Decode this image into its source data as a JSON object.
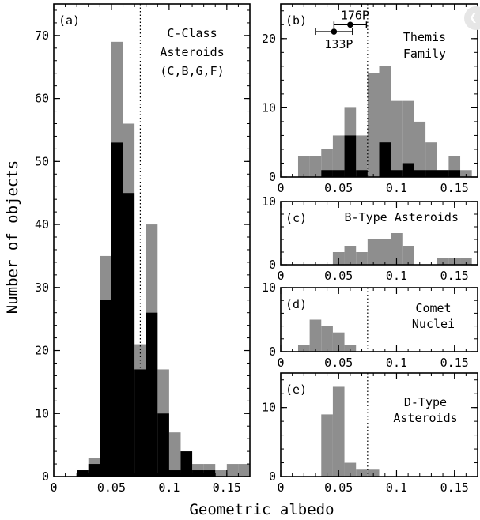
{
  "colors": {
    "gray": "#8e8e8e",
    "black": "#000000",
    "background": "#ffffff"
  },
  "corner_button_icon": "chevron-left-icon",
  "axis_titles": {
    "x": "Geometric albedo",
    "y": "Number of objects"
  },
  "chart_data": [
    {
      "panel": "(a)",
      "type": "bar",
      "label": "C-Class Asteroids (C,B,G,F)",
      "label_lines": [
        "C-Class",
        "Asteroids",
        "(C,B,G,F)"
      ],
      "bin_width": 0.01,
      "bin_starts": [
        0.02,
        0.03,
        0.04,
        0.05,
        0.06,
        0.07,
        0.08,
        0.09,
        0.1,
        0.11,
        0.12,
        0.13,
        0.14,
        0.15,
        0.16
      ],
      "series": [
        {
          "color": "gray",
          "values": [
            1,
            3,
            35,
            69,
            56,
            21,
            40,
            17,
            7,
            4,
            2,
            2,
            1,
            2,
            2
          ]
        },
        {
          "color": "black",
          "values": [
            1,
            2,
            28,
            53,
            45,
            17,
            26,
            10,
            1,
            4,
            1,
            1,
            0,
            0,
            0
          ]
        }
      ],
      "xlim": [
        0,
        0.17
      ],
      "ylim": [
        0,
        75
      ],
      "xticks": [
        0,
        0.05,
        0.1,
        0.15
      ],
      "xtick_labels": [
        "0",
        "0.05",
        "0.1",
        "0.15"
      ],
      "yticks": [
        0,
        10,
        20,
        30,
        40,
        50,
        60,
        70
      ],
      "ytick_labels": [
        "0",
        "10",
        "20",
        "30",
        "40",
        "50",
        "60",
        "70"
      ],
      "dotted_line_x": 0.075
    },
    {
      "panel": "(b)",
      "type": "bar",
      "label": "Themis Family",
      "label_lines": [
        "Themis",
        "Family"
      ],
      "bin_width": 0.01,
      "bin_starts": [
        0.015,
        0.025,
        0.035,
        0.045,
        0.055,
        0.065,
        0.075,
        0.085,
        0.095,
        0.105,
        0.115,
        0.125,
        0.135,
        0.145,
        0.155
      ],
      "series": [
        {
          "color": "gray",
          "values": [
            3,
            3,
            4,
            6,
            10,
            6,
            15,
            16,
            11,
            11,
            8,
            5,
            1,
            3,
            1
          ]
        },
        {
          "color": "black",
          "values": [
            0,
            0,
            1,
            1,
            6,
            1,
            0,
            5,
            1,
            2,
            1,
            1,
            1,
            1,
            0
          ]
        }
      ],
      "xlim": [
        0,
        0.17
      ],
      "ylim": [
        0,
        25
      ],
      "xticks": [
        0,
        0.05,
        0.1,
        0.15
      ],
      "xtick_labels": [
        "0",
        "0.05",
        "0.1",
        "0.15"
      ],
      "yticks": [
        0,
        10,
        20
      ],
      "ytick_labels": [
        "0",
        "10",
        "20"
      ],
      "dotted_line_x": 0.075,
      "points": [
        {
          "label": "176P",
          "x": 0.06,
          "y": 22,
          "xerr": 0.014
        },
        {
          "label": "133P",
          "x": 0.046,
          "y": 21,
          "xerr": 0.016
        }
      ]
    },
    {
      "panel": "(c)",
      "type": "bar",
      "label": "B-Type Asteroids",
      "label_lines": [
        "B-Type Asteroids"
      ],
      "bin_width": 0.01,
      "bin_starts": [
        0.045,
        0.055,
        0.065,
        0.075,
        0.085,
        0.095,
        0.105,
        0.115,
        0.125,
        0.135,
        0.145,
        0.155
      ],
      "series": [
        {
          "color": "gray",
          "values": [
            2,
            3,
            2,
            4,
            4,
            5,
            3,
            0,
            0,
            1,
            1,
            1
          ]
        }
      ],
      "xlim": [
        0,
        0.17
      ],
      "ylim": [
        0,
        10
      ],
      "xticks": [
        0,
        0.05,
        0.1,
        0.15
      ],
      "xtick_labels": [
        "0",
        "0.05",
        "0.1",
        "0.15"
      ],
      "yticks": [
        0,
        10
      ],
      "ytick_labels": [
        "0",
        "10"
      ]
    },
    {
      "panel": "(d)",
      "type": "bar",
      "label": "Comet Nuclei",
      "label_lines": [
        "Comet",
        "Nuclei"
      ],
      "bin_width": 0.01,
      "bin_starts": [
        0.015,
        0.025,
        0.035,
        0.045,
        0.055
      ],
      "series": [
        {
          "color": "gray",
          "values": [
            1,
            5,
            4,
            3,
            1
          ]
        }
      ],
      "xlim": [
        0,
        0.17
      ],
      "ylim": [
        0,
        10
      ],
      "xticks": [
        0,
        0.05,
        0.1,
        0.15
      ],
      "xtick_labels": [
        "0",
        "0.05",
        "0.1",
        "0.15"
      ],
      "yticks": [
        0,
        10
      ],
      "ytick_labels": [
        "0",
        "10"
      ],
      "dotted_line_x": 0.075
    },
    {
      "panel": "(e)",
      "type": "bar",
      "label": "D-Type Asteroids",
      "label_lines": [
        "D-Type",
        "Asteroids"
      ],
      "bin_width": 0.01,
      "bin_starts": [
        0.035,
        0.045,
        0.055,
        0.065,
        0.075
      ],
      "series": [
        {
          "color": "gray",
          "values": [
            9,
            13,
            2,
            1,
            1
          ]
        }
      ],
      "xlim": [
        0,
        0.17
      ],
      "ylim": [
        0,
        15
      ],
      "xticks": [
        0,
        0.05,
        0.1,
        0.15
      ],
      "xtick_labels": [
        "0",
        "0.05",
        "0.1",
        "0.15"
      ],
      "yticks": [
        0,
        10
      ],
      "ytick_labels": [
        "0",
        "10"
      ],
      "dotted_line_x": 0.075
    }
  ]
}
